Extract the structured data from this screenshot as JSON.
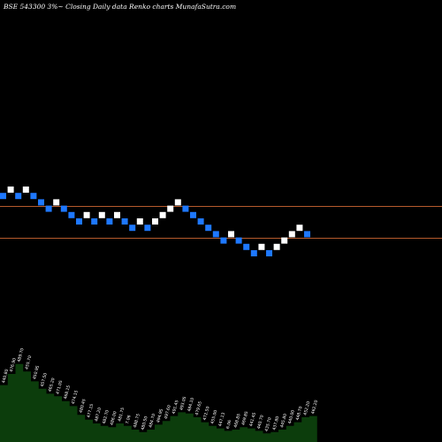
{
  "header": {
    "title": "BSE 543300  3%~   Closing Daily data  Renko  charts MunafaSutra.com"
  },
  "colors": {
    "background": "#000000",
    "up_brick": "#ffffff",
    "down_brick": "#1e78ff",
    "level_line": "#b55a2c",
    "volume_fill": "#0c3d0c",
    "volume_label": "#ffffff"
  },
  "chart_data": {
    "type": "renko",
    "title": "BSE 543300  3%~   Closing Daily data  Renko  charts MunafaSutra.com",
    "price_levels": [
      0,
      5
    ],
    "bricks": [
      {
        "dir": "down",
        "level": 1
      },
      {
        "dir": "up",
        "level": 0
      },
      {
        "dir": "down",
        "level": 1
      },
      {
        "dir": "up",
        "level": 0
      },
      {
        "dir": "down",
        "level": 1
      },
      {
        "dir": "down",
        "level": 2
      },
      {
        "dir": "down",
        "level": 3
      },
      {
        "dir": "up",
        "level": 2
      },
      {
        "dir": "down",
        "level": 3
      },
      {
        "dir": "down",
        "level": 4
      },
      {
        "dir": "down",
        "level": 5
      },
      {
        "dir": "up",
        "level": 4
      },
      {
        "dir": "down",
        "level": 5
      },
      {
        "dir": "up",
        "level": 4
      },
      {
        "dir": "down",
        "level": 5
      },
      {
        "dir": "up",
        "level": 4
      },
      {
        "dir": "down",
        "level": 5
      },
      {
        "dir": "down",
        "level": 6
      },
      {
        "dir": "up",
        "level": 5
      },
      {
        "dir": "down",
        "level": 6
      },
      {
        "dir": "up",
        "level": 5
      },
      {
        "dir": "up",
        "level": 4
      },
      {
        "dir": "up",
        "level": 3
      },
      {
        "dir": "up",
        "level": 2
      },
      {
        "dir": "down",
        "level": 3
      },
      {
        "dir": "down",
        "level": 4
      },
      {
        "dir": "down",
        "level": 5
      },
      {
        "dir": "down",
        "level": 6
      },
      {
        "dir": "down",
        "level": 7
      },
      {
        "dir": "down",
        "level": 8
      },
      {
        "dir": "up",
        "level": 7
      },
      {
        "dir": "down",
        "level": 8
      },
      {
        "dir": "down",
        "level": 9
      },
      {
        "dir": "down",
        "level": 10
      },
      {
        "dir": "up",
        "level": 9
      },
      {
        "dir": "down",
        "level": 10
      },
      {
        "dir": "up",
        "level": 9
      },
      {
        "dir": "up",
        "level": 8
      },
      {
        "dir": "up",
        "level": 7
      },
      {
        "dir": "up",
        "level": 6
      },
      {
        "dir": "down",
        "level": 7
      }
    ],
    "volume": [
      46,
      55,
      63,
      57,
      49,
      43,
      39,
      37,
      33,
      29,
      22,
      18,
      15,
      13,
      12,
      15,
      13,
      10,
      8,
      10,
      14,
      17,
      21,
      24,
      23,
      20,
      16,
      13,
      11,
      9,
      10,
      12,
      11,
      9,
      7,
      8,
      10,
      13,
      16,
      20,
      21
    ],
    "volume_labels": [
      "440.80",
      "476.90",
      "489.70",
      "455.70",
      "450.95",
      "457.50",
      "465.20",
      "471.05",
      "468.15",
      "474.15",
      "480.45",
      "477.15",
      "487.20",
      "482.70",
      "486.00",
      "481.75",
      "7.06",
      "488.75",
      "480.50",
      "484.70",
      "494.95",
      "497.60",
      "491.45",
      "493.05",
      "484.10",
      "479.65",
      "472.50",
      "455.00",
      "447.13",
      "6.06",
      "468.85",
      "469.85",
      "441.45",
      "440.70",
      "435.70",
      "437.80",
      "445.80",
      "440.00",
      "448.70",
      "452.20",
      "462.20"
    ]
  }
}
